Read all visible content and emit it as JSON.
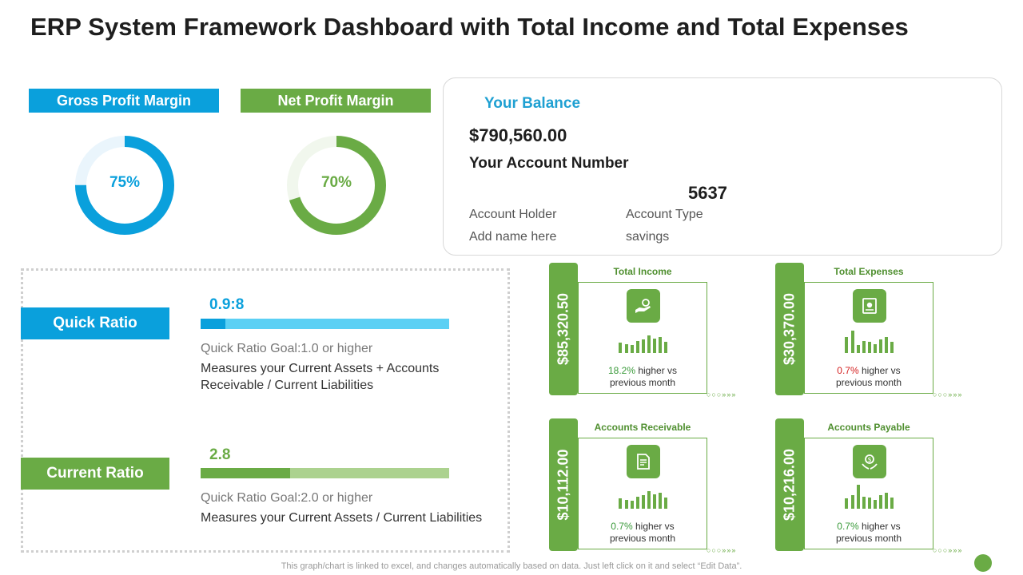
{
  "title": "ERP System Framework Dashboard with Total Income and Total Expenses",
  "gross": {
    "label": "Gross Profit Margin",
    "value_text": "75%",
    "percent": 75,
    "color": "#0aa0dc",
    "track": "#eaf5fc"
  },
  "net": {
    "label": "Net Profit Margin",
    "value_text": "70%",
    "percent": 70,
    "color": "#6aab45",
    "track": "#f1f7ed"
  },
  "balance": {
    "label": "Your Balance",
    "amount": "$790,560.00",
    "account_number_label": "Your Account Number",
    "account_number": "5637",
    "holder_label": "Account Holder",
    "holder_value": "Add name here",
    "type_label": "Account Type",
    "type_value": "savings"
  },
  "quick_ratio": {
    "label": "Quick Ratio",
    "value": "0.9:8",
    "progress": 0.1,
    "goal": "Quick Ratio Goal:1.0  or higher",
    "desc": "Measures your Current Assets + Accounts Receivable / Current Liabilities",
    "color": "#0aa0dc",
    "track": "#5bd0f4"
  },
  "current_ratio": {
    "label": "Current Ratio",
    "value": "2.8",
    "progress": 0.36,
    "goal": "Quick Ratio Goal:2.0  or higher",
    "desc": "Measures your Current Assets / Current Liabilities",
    "color": "#6aab45",
    "track": "#acd28f"
  },
  "kpis": {
    "income": {
      "title": "Total Income",
      "value": "$85,320.50",
      "change": "18.2%",
      "change_color": "#3a9a3a",
      "note": " higher vs",
      "note2": "previous  month",
      "icon": "money-hand-icon"
    },
    "expenses": {
      "title": "Total Expenses",
      "value": "$30,370.00",
      "change": "0.7%",
      "change_color": "#d42020",
      "note": " higher vs",
      "note2": "previous  month",
      "icon": "receipt-icon"
    },
    "receivable": {
      "title": "Accounts Receivable",
      "value": "$10,112.00",
      "change": "0.7%",
      "change_color": "#3a9a3a",
      "note": " higher vs",
      "note2": "previous  month",
      "icon": "invoice-icon"
    },
    "payable": {
      "title": "Accounts Payable",
      "value": "$10,216.00",
      "change": "0.7%",
      "change_color": "#3a9a3a",
      "note": " higher vs",
      "note2": "previous  month",
      "icon": "coin-hands-icon"
    }
  },
  "footnote": "This graph/chart is linked to excel, and changes automatically based on data. Just left click on it and select “Edit Data”."
}
